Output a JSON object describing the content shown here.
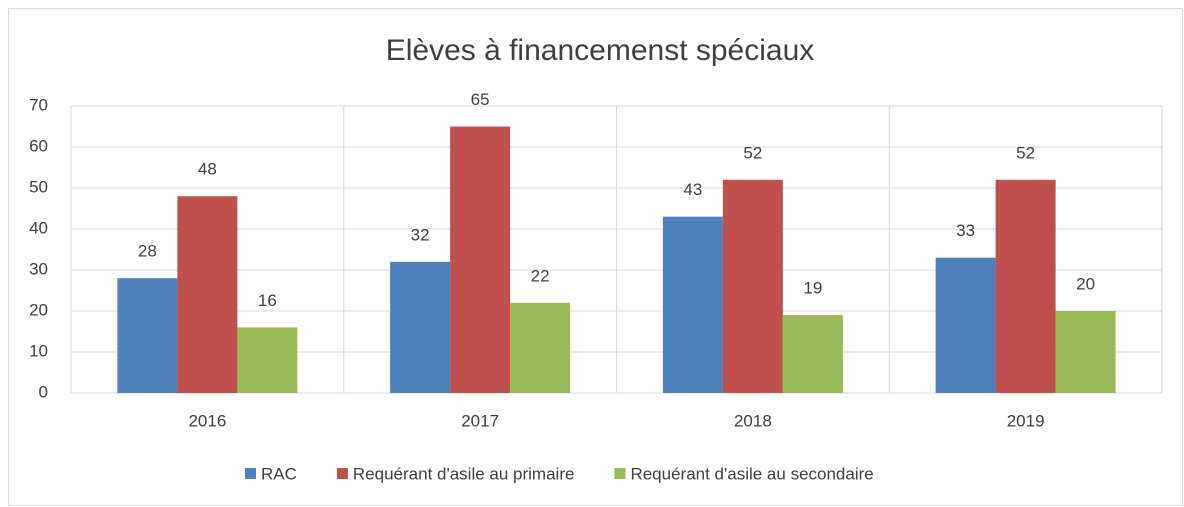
{
  "chart_data": {
    "type": "bar",
    "title": "Elèves à financemenst spéciaux",
    "categories": [
      "2016",
      "2017",
      "2018",
      "2019"
    ],
    "series": [
      {
        "name": "RAC",
        "color": "#4f81bd",
        "values": [
          28,
          32,
          43,
          33
        ]
      },
      {
        "name": "Requérant d'asile au primaire",
        "color": "#c0504d",
        "values": [
          48,
          65,
          52,
          52
        ]
      },
      {
        "name": "Requérant d'asile au secondaire",
        "color": "#9bbb59",
        "values": [
          16,
          22,
          19,
          20
        ]
      }
    ],
    "ylim": [
      0,
      70
    ],
    "yticks": [
      0,
      10,
      20,
      30,
      40,
      50,
      60,
      70
    ],
    "grid": true,
    "legend": "bottom"
  }
}
